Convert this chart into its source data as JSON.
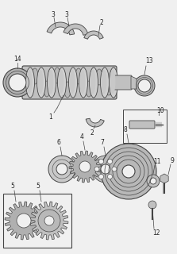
{
  "bg_color": "#f0f0f0",
  "line_color": "#444444",
  "gray1": "#b8b8b8",
  "gray2": "#999999",
  "gray3": "#d0d0d0",
  "white": "#ffffff",
  "lfs": 5.5
}
